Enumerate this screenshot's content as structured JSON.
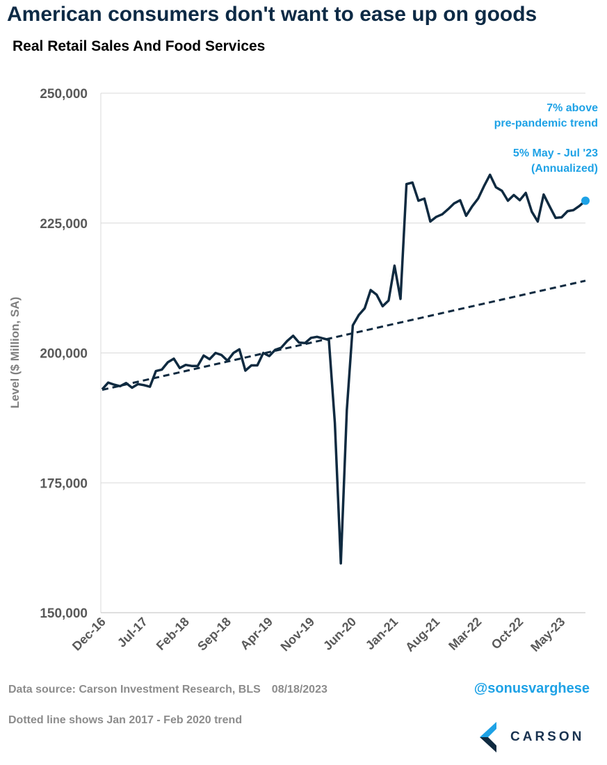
{
  "header": {
    "title": "American consumers don't want to ease up on goods",
    "subtitle": "Real Retail Sales And Food Services"
  },
  "chart_data": {
    "type": "line",
    "ylabel": "Level ($ Million, SA)",
    "ylim": [
      150000,
      250000
    ],
    "y_ticks": [
      150000,
      175000,
      200000,
      225000,
      250000
    ],
    "y_tick_labels": [
      "150,000",
      "175,000",
      "200,000",
      "225,000",
      "250,000"
    ],
    "x_start": "2016-12",
    "x_ticks": [
      "Dec-16",
      "Jul-17",
      "Feb-18",
      "Sep-18",
      "Apr-19",
      "Nov-19",
      "Jun-20",
      "Jan-21",
      "Aug-21",
      "Mar-22",
      "Oct-22",
      "May-23"
    ],
    "grid": "horizontal",
    "series": [
      {
        "style": "solid",
        "color": "#0f2a40",
        "values": [
          193000,
          194300,
          193900,
          193600,
          194200,
          193300,
          194000,
          193800,
          193500,
          196500,
          196800,
          198200,
          198900,
          197100,
          197700,
          197500,
          197500,
          199500,
          198800,
          200000,
          199600,
          198500,
          200000,
          200700,
          196600,
          197600,
          197600,
          200000,
          199400,
          200600,
          201000,
          202300,
          203300,
          202000,
          201900,
          202900,
          203100,
          202800,
          202500,
          186500,
          159500,
          189000,
          205300,
          207300,
          208600,
          212100,
          211200,
          209000,
          210100,
          216800,
          210400,
          232500,
          232800,
          229300,
          229700,
          225300,
          226200,
          226700,
          227700,
          228800,
          229400,
          226400,
          228200,
          229700,
          232100,
          234300,
          231900,
          231200,
          229300,
          230400,
          229400,
          230800,
          227200,
          225300,
          230500,
          228200,
          226000,
          226100,
          227300,
          227500,
          228300,
          229300
        ]
      },
      {
        "style": "dashed",
        "color": "#0f2a40",
        "values_at_ends": [
          192900,
          213900
        ]
      }
    ],
    "annotations": [
      {
        "line1": "7% above",
        "line2": "pre-pandemic trend"
      },
      {
        "line1": "5% May - Jul '23",
        "line2": "(Annualized)"
      }
    ],
    "colors": {
      "line": "#0f2a40",
      "annotation": "#1ea2e6",
      "grid": "#d9d9d9"
    }
  },
  "footer": {
    "source": "Data source: Carson Investment Research, BLS",
    "date": "08/18/2023",
    "note": "Dotted line shows Jan 2017 - Feb 2020 trend",
    "handle": "@sonusvarghese",
    "logo_text": "CARSON"
  }
}
